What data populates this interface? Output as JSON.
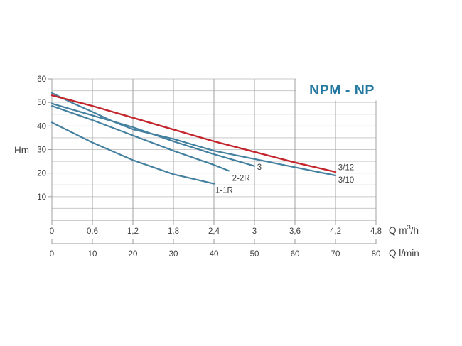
{
  "chart_data": {
    "type": "line",
    "title": "NPM - NP",
    "grid": true,
    "legend_position": "labels-at-curve-ends",
    "colors": {
      "title": "#2579a1",
      "red_curve": "#c4262e",
      "blue_curve": "#44809f",
      "grid_horizontal": "#c9c9c9",
      "grid_vertical": "#a2a2a2",
      "axis": "#9b9b9b",
      "text": "#3f3f3f"
    },
    "y_axis": {
      "label": "Hm",
      "range": [
        0,
        60
      ],
      "grid_step": 5,
      "tick_values": [
        10,
        20,
        30,
        40,
        50,
        60
      ],
      "tick_labels": [
        "10",
        "20",
        "30",
        "40",
        "50",
        "60"
      ]
    },
    "x_axis_m3h": {
      "label_pre": "Q m",
      "label_sup": "3",
      "label_post": "/h",
      "range": [
        0,
        4.8
      ],
      "tick_values": [
        0,
        0.6,
        1.2,
        1.8,
        2.4,
        3,
        3.6,
        4.2,
        4.8
      ],
      "tick_labels": [
        "0",
        "0,6",
        "1,2",
        "1,8",
        "2,4",
        "3",
        "3,6",
        "4,2",
        "4,8"
      ]
    },
    "x_axis_lmin": {
      "label": "Q l/min",
      "range": [
        0,
        80
      ],
      "tick_values": [
        0,
        10,
        20,
        30,
        40,
        50,
        60,
        70,
        80
      ],
      "tick_labels": [
        "0",
        "10",
        "20",
        "30",
        "40",
        "50",
        "60",
        "70",
        "80"
      ]
    },
    "series": [
      {
        "name": "1-1R",
        "color_key": "blue_curve",
        "points": [
          [
            0,
            41.5
          ],
          [
            0.6,
            33
          ],
          [
            1.2,
            25.5
          ],
          [
            1.8,
            19.5
          ],
          [
            2.4,
            15.5
          ]
        ],
        "label": {
          "text": "1-1R",
          "q": 2.42,
          "h": 11.6,
          "anchor": "start"
        }
      },
      {
        "name": "2-2R",
        "color_key": "blue_curve",
        "points": [
          [
            0,
            48.5
          ],
          [
            0.6,
            42.5
          ],
          [
            1.2,
            36
          ],
          [
            1.8,
            29.5
          ],
          [
            2.4,
            23.5
          ],
          [
            2.62,
            21
          ]
        ],
        "label": {
          "text": "2-2R",
          "q": 2.67,
          "h": 16.7,
          "anchor": "start"
        }
      },
      {
        "name": "3",
        "color_key": "blue_curve",
        "points": [
          [
            0,
            49.5
          ],
          [
            0.6,
            44.5
          ],
          [
            1.2,
            39.5
          ],
          [
            1.8,
            33.5
          ],
          [
            2.4,
            28
          ],
          [
            3,
            23
          ]
        ],
        "label": {
          "text": "3",
          "q": 3.04,
          "h": 21.4,
          "anchor": "start"
        }
      },
      {
        "name": "3/10",
        "color_key": "blue_curve",
        "points": [
          [
            0,
            54
          ],
          [
            0.3,
            49.8
          ],
          [
            0.6,
            46
          ],
          [
            0.9,
            42
          ],
          [
            1.2,
            38.6
          ],
          [
            1.8,
            34.5
          ],
          [
            2.4,
            29.5
          ],
          [
            3,
            26
          ],
          [
            3.6,
            22.5
          ],
          [
            4.2,
            19
          ]
        ],
        "label": {
          "text": "3/10",
          "q": 4.24,
          "h": 16.0,
          "anchor": "start"
        }
      },
      {
        "name": "3/12",
        "color_key": "red_curve",
        "points": [
          [
            0,
            53
          ],
          [
            0.6,
            48.5
          ],
          [
            1.2,
            43.5
          ],
          [
            1.8,
            38.5
          ],
          [
            2.4,
            33.5
          ],
          [
            3,
            29
          ],
          [
            3.6,
            24.5
          ],
          [
            4.2,
            20.5
          ]
        ],
        "label": {
          "text": "3/12",
          "q": 4.24,
          "h": 21.2,
          "anchor": "start"
        }
      }
    ]
  }
}
